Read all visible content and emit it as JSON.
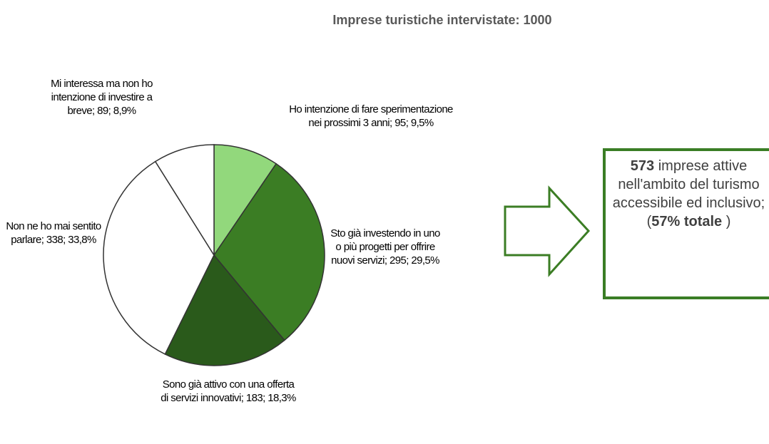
{
  "chart_data": {
    "type": "pie",
    "title": "Imprese turistiche intervistate: 1000",
    "categories": [
      "Ho intenzione di fare sperimentazione nei prossimi 3 anni",
      "Sto già investendo in uno o più progetti per offrire nuovi servizi",
      "Sono già attivo con una offerta di servizi innovativi",
      "Non ne ho mai sentito parlare",
      "Mi interessa ma non ho intenzione di investire a breve"
    ],
    "values": [
      95,
      295,
      183,
      338,
      89
    ],
    "percent_labels": [
      "9,5%",
      "29,5%",
      "18,3%",
      "33,8%",
      "8,9%"
    ],
    "separator": "; ",
    "colors": [
      "#92d87c",
      "#3b7d24",
      "#2a5a1b",
      "#ffffff",
      "#ffffff"
    ],
    "callout": {
      "count": 573,
      "text": "imprese attive nell'ambito del turismo accessibile ed inclusivo;",
      "open": "(",
      "share": "57% totale",
      "close": " )"
    }
  }
}
